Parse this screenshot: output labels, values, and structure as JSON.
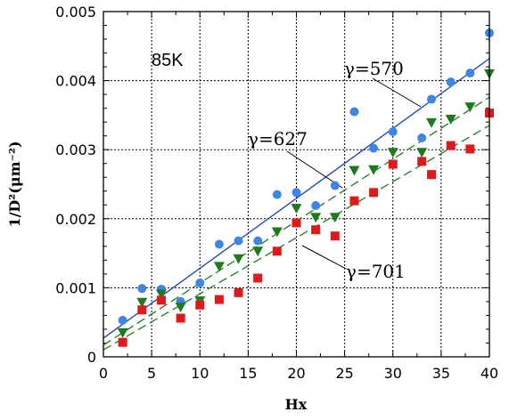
{
  "chart_data": {
    "type": "scatter",
    "xlabel": "Hx",
    "ylabel": "1/D²(μm⁻²)",
    "xlim": [
      0,
      40
    ],
    "ylim": [
      0,
      0.005
    ],
    "x_ticks": [
      "0",
      "5",
      "10",
      "15",
      "20",
      "25",
      "30",
      "35",
      "40"
    ],
    "y_ticks": [
      "0",
      "0.001",
      "0.002",
      "0.003",
      "0.004",
      "0.005"
    ],
    "grid": true,
    "annotations": {
      "temperature": "85K",
      "gamma_570": "γ=570",
      "gamma_627": "γ=627",
      "gamma_701": "γ=701"
    },
    "series": [
      {
        "marker": "circle",
        "color": "#3d86e6",
        "points": [
          [
            2,
            0.00053
          ],
          [
            4,
            0.00099
          ],
          [
            6,
            0.00098
          ],
          [
            8,
            0.0008
          ],
          [
            10,
            0.00107
          ],
          [
            12,
            0.00163
          ],
          [
            14,
            0.00168
          ],
          [
            16,
            0.00168
          ],
          [
            18,
            0.00235
          ],
          [
            20,
            0.00238
          ],
          [
            22,
            0.00219
          ],
          [
            24,
            0.00248
          ],
          [
            26,
            0.00355
          ],
          [
            28,
            0.00302
          ],
          [
            30,
            0.00326
          ],
          [
            33,
            0.00317
          ],
          [
            34,
            0.00373
          ],
          [
            36,
            0.00398
          ],
          [
            38,
            0.00411
          ],
          [
            40,
            0.00469
          ]
        ],
        "fit": {
          "x": [
            0,
            40
          ],
          "y": [
            0.00027,
            0.00432
          ],
          "style": "solid",
          "color": "#1a3fb8"
        }
      },
      {
        "marker": "triangle-down",
        "color": "#1f7a1f",
        "points": [
          [
            2,
            0.00035
          ],
          [
            4,
            0.00079
          ],
          [
            6,
            0.00091
          ],
          [
            8,
            0.00072
          ],
          [
            10,
            0.00081
          ],
          [
            12,
            0.00131
          ],
          [
            14,
            0.00142
          ],
          [
            16,
            0.00153
          ],
          [
            18,
            0.00181
          ],
          [
            20,
            0.00215
          ],
          [
            22,
            0.00202
          ],
          [
            24,
            0.00202
          ],
          [
            26,
            0.0027
          ],
          [
            28,
            0.00271
          ],
          [
            30,
            0.00296
          ],
          [
            33,
            0.00296
          ],
          [
            34,
            0.00339
          ],
          [
            36,
            0.00344
          ],
          [
            38,
            0.00362
          ],
          [
            40,
            0.0041
          ]
        ],
        "fit": {
          "x": [
            0,
            40
          ],
          "y": [
            0.00017,
            0.00376
          ],
          "style": "dashed",
          "color": "#1f7a1f"
        }
      },
      {
        "marker": "square",
        "color": "#e01a1a",
        "points": [
          [
            2,
            0.00021
          ],
          [
            4,
            0.00068
          ],
          [
            6,
            0.00082
          ],
          [
            8,
            0.00056
          ],
          [
            10,
            0.00075
          ],
          [
            12,
            0.00083
          ],
          [
            14,
            0.00093
          ],
          [
            16,
            0.00114
          ],
          [
            18,
            0.00153
          ],
          [
            20,
            0.00194
          ],
          [
            22,
            0.00184
          ],
          [
            24,
            0.00175
          ],
          [
            26,
            0.00226
          ],
          [
            28,
            0.00238
          ],
          [
            30,
            0.00279
          ],
          [
            33,
            0.00283
          ],
          [
            34,
            0.00264
          ],
          [
            36,
            0.00306
          ],
          [
            38,
            0.00301
          ],
          [
            40,
            0.00353
          ]
        ],
        "fit": {
          "x": [
            0,
            40
          ],
          "y": [
            0.0001,
            0.00335
          ],
          "style": "dashed",
          "color": "#1f7a1f"
        }
      }
    ]
  }
}
